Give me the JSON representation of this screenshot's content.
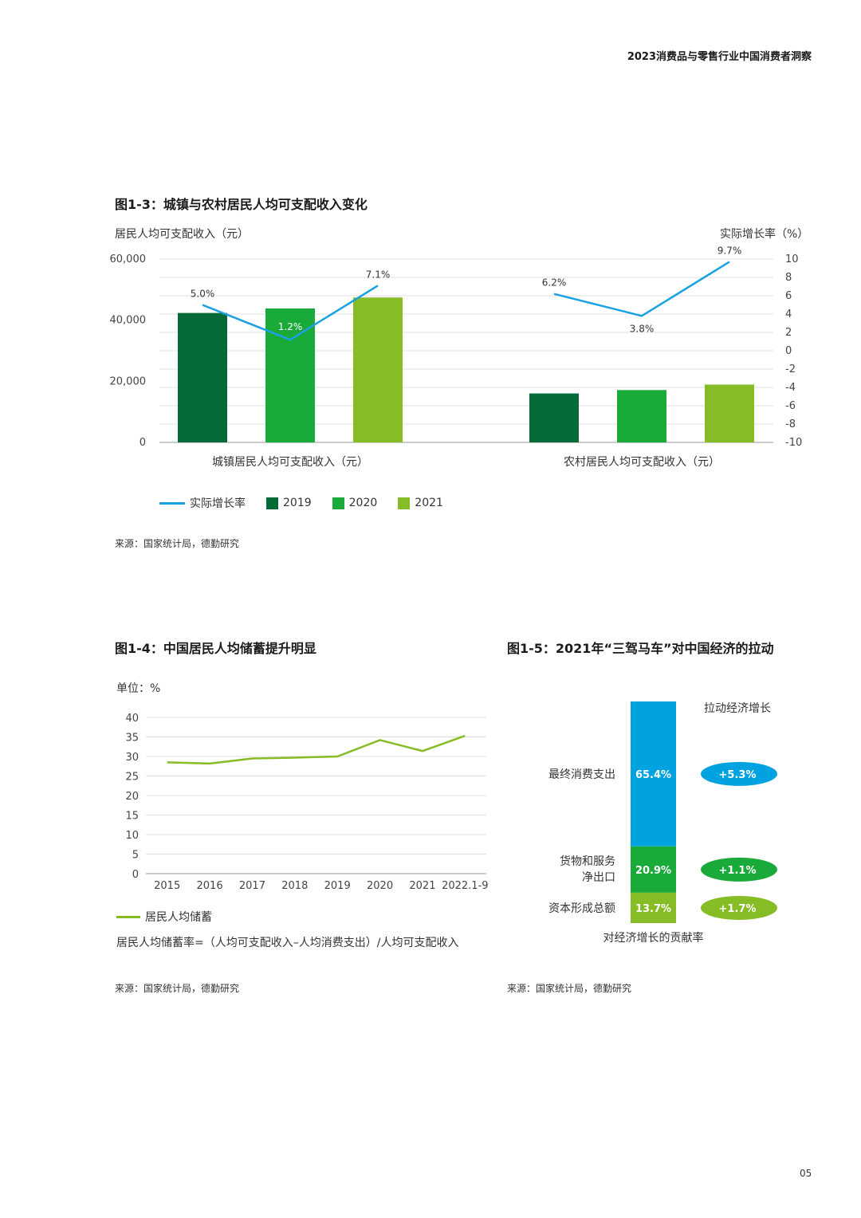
{
  "header": {
    "title": "2023消费品与零售行业中国消费者洞察"
  },
  "page_number": "05",
  "fig13": {
    "title": "图1-3：城镇与农村居民人均可支配收入变化",
    "left_axis_title": "居民人均可支配收入（元）",
    "right_axis_title": "实际增长率（%）",
    "legend": {
      "line": "实际增长率",
      "y2019": "2019",
      "y2020": "2020",
      "y2021": "2021"
    },
    "source": "来源：国家统计局，德勤研究"
  },
  "fig14": {
    "title": "图1-4：中国居民人均储蓄提升明显",
    "unit": "单位：%",
    "legend": "居民人均储蓄",
    "formula": "居民人均储蓄率=（人均可支配收入–人均消费支出）/人均可支配收入",
    "source": "来源：国家统计局，德勤研究"
  },
  "fig15": {
    "title": "图1-5：2021年“三驾马车”对中国经济的拉动",
    "source": "来源：国家统计局，德勤研究"
  },
  "chart_data": [
    {
      "type": "bar",
      "title": "图1-3：城镇与农村居民人均可支配收入变化",
      "ylabel": "居民人均可支配收入（元）",
      "y2label": "实际增长率（%）",
      "ylim": [
        0,
        60000
      ],
      "y2lim": [
        -10,
        10
      ],
      "yticks": [
        "0",
        "20,000",
        "40,000",
        "60,000"
      ],
      "y2ticks": [
        "-10",
        "-8",
        "-6",
        "-4",
        "-2",
        "0",
        "2",
        "4",
        "6",
        "8",
        "10"
      ],
      "categories": [
        "城镇居民人均可支配收入（元）",
        "农村居民人均可支配收入（元）"
      ],
      "colors": {
        "2019": "#046a38",
        "2020": "#1aaa3a",
        "2021": "#86bc25",
        "line": "#1ba1e2"
      },
      "series": [
        {
          "name": "2019",
          "values": [
            42359,
            16021
          ]
        },
        {
          "name": "2020",
          "values": [
            43834,
            17131
          ]
        },
        {
          "name": "2021",
          "values": [
            47412,
            18931
          ]
        }
      ],
      "growth": [
        {
          "name": "实际增长率",
          "values": [
            5.0,
            1.2,
            7.1
          ],
          "labels": [
            "5.0%",
            "1.2%",
            "7.1%"
          ]
        },
        {
          "name": "实际增长率",
          "values": [
            6.2,
            3.8,
            9.7
          ],
          "labels": [
            "6.2%",
            "3.8%",
            "9.7%"
          ]
        }
      ],
      "grid": true,
      "legend_position": "bottom"
    },
    {
      "type": "line",
      "title": "图1-4：中国居民人均储蓄提升明显",
      "ylabel": "单位：%",
      "x": [
        "2015",
        "2016",
        "2017",
        "2018",
        "2019",
        "2020",
        "2021",
        "2022.1-9"
      ],
      "ylim": [
        0,
        40
      ],
      "yticks": [
        "0",
        "5",
        "10",
        "15",
        "20",
        "25",
        "30",
        "35",
        "40"
      ],
      "series": [
        {
          "name": "居民人均储蓄",
          "values": [
            28.5,
            28.2,
            29.5,
            29.7,
            30.0,
            34.2,
            31.4,
            35.3
          ],
          "color": "#86bc25"
        }
      ],
      "grid": true,
      "legend_position": "bottom"
    },
    {
      "type": "bar",
      "title": "图1-5：2021年“三驾马车”对中国经济的拉动",
      "xlabel": "对经济增长的贡献率",
      "pull_label": "拉动经济增长",
      "stacked": true,
      "segments": [
        {
          "name": "最终消费支出",
          "value": 65.4,
          "label": "65.4%",
          "pull": "+5.3%",
          "color": "#00a3e0"
        },
        {
          "name": "货物和服务净出口",
          "value": 20.9,
          "label": "20.9%",
          "pull": "+1.1%",
          "color": "#1aaa3a"
        },
        {
          "name": "资本形成总额",
          "value": 13.7,
          "label": "13.7%",
          "pull": "+1.7%",
          "color": "#86bc25"
        }
      ]
    }
  ]
}
